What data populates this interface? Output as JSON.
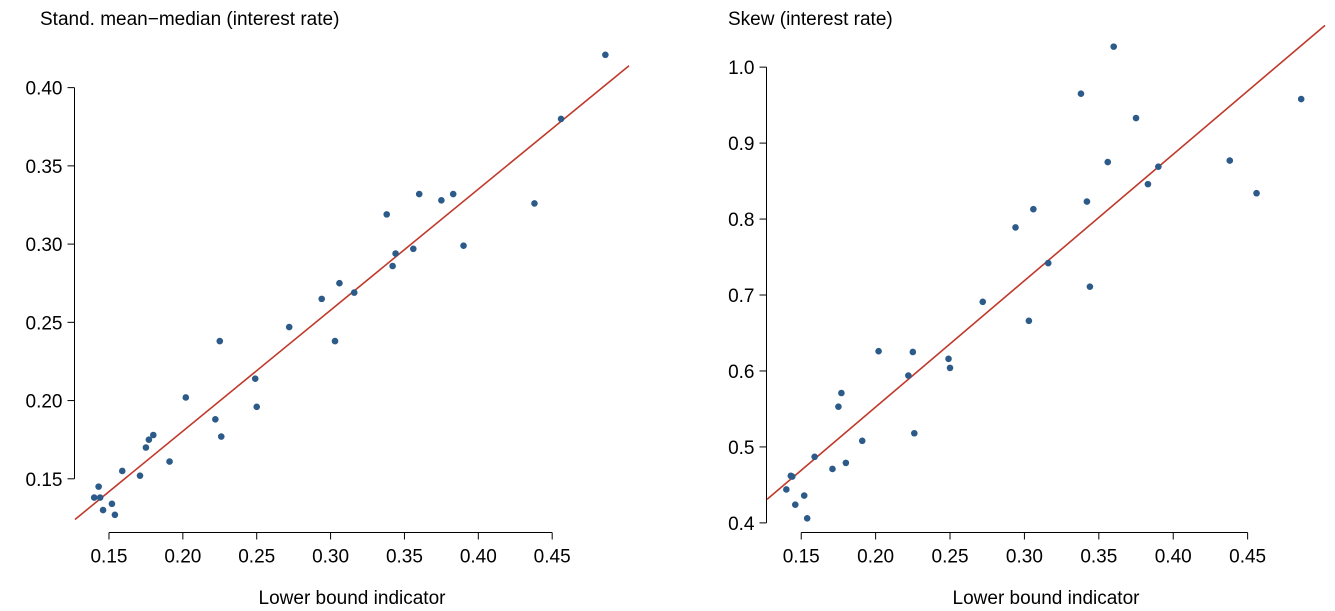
{
  "chart_data": [
    {
      "type": "scatter",
      "title": "Stand. mean−median (interest rate)",
      "xlabel": "Lower bound indicator",
      "ylabel": "",
      "xlim": [
        0.127,
        0.502
      ],
      "ylim": [
        0.116,
        0.433
      ],
      "xticks": [
        0.15,
        0.2,
        0.25,
        0.3,
        0.35,
        0.4,
        0.45
      ],
      "xtick_labels": [
        "0.15",
        "0.20",
        "0.25",
        "0.30",
        "0.35",
        "0.40",
        "0.45"
      ],
      "yticks": [
        0.15,
        0.2,
        0.25,
        0.3,
        0.35,
        0.4
      ],
      "ytick_labels": [
        "0.15",
        "0.20",
        "0.25",
        "0.30",
        "0.35",
        "0.40"
      ],
      "grid": false,
      "point_color": "#2c5b8a",
      "line_color": "#c0392b",
      "fit_line": [
        [
          0.127,
          0.124
        ],
        [
          0.502,
          0.414
        ]
      ],
      "x": [
        0.14,
        0.143,
        0.144,
        0.146,
        0.152,
        0.154,
        0.159,
        0.171,
        0.175,
        0.177,
        0.18,
        0.191,
        0.202,
        0.222,
        0.225,
        0.226,
        0.249,
        0.25,
        0.272,
        0.294,
        0.303,
        0.306,
        0.316,
        0.338,
        0.342,
        0.344,
        0.356,
        0.36,
        0.375,
        0.383,
        0.39,
        0.438,
        0.456,
        0.486
      ],
      "y": [
        0.138,
        0.145,
        0.138,
        0.13,
        0.134,
        0.127,
        0.155,
        0.152,
        0.17,
        0.175,
        0.178,
        0.161,
        0.202,
        0.188,
        0.238,
        0.177,
        0.214,
        0.196,
        0.247,
        0.265,
        0.238,
        0.275,
        0.269,
        0.319,
        0.286,
        0.294,
        0.297,
        0.332,
        0.328,
        0.332,
        0.299,
        0.326,
        0.38,
        0.421
      ]
    },
    {
      "type": "scatter",
      "title": "Skew (interest rate)",
      "xlabel": "Lower bound indicator",
      "ylabel": "",
      "xlim": [
        0.127,
        0.502
      ],
      "ylim": [
        0.388,
        1.041
      ],
      "xticks": [
        0.15,
        0.2,
        0.25,
        0.3,
        0.35,
        0.4,
        0.45
      ],
      "xtick_labels": [
        "0.15",
        "0.20",
        "0.25",
        "0.30",
        "0.35",
        "0.40",
        "0.45"
      ],
      "yticks": [
        0.4,
        0.5,
        0.6,
        0.7,
        0.8,
        0.9,
        1.0
      ],
      "ytick_labels": [
        "0.4",
        "0.5",
        "0.6",
        "0.7",
        "0.8",
        "0.9",
        "1.0"
      ],
      "grid": false,
      "point_color": "#2c5b8a",
      "line_color": "#c0392b",
      "fit_line": [
        [
          0.127,
          0.431
        ],
        [
          0.502,
          1.055
        ]
      ],
      "x": [
        0.14,
        0.143,
        0.144,
        0.146,
        0.152,
        0.154,
        0.159,
        0.171,
        0.175,
        0.177,
        0.18,
        0.191,
        0.202,
        0.222,
        0.225,
        0.226,
        0.249,
        0.25,
        0.272,
        0.294,
        0.303,
        0.306,
        0.316,
        0.338,
        0.342,
        0.344,
        0.356,
        0.36,
        0.375,
        0.383,
        0.39,
        0.438,
        0.456,
        0.486
      ],
      "y": [
        0.444,
        0.462,
        0.461,
        0.424,
        0.436,
        0.406,
        0.487,
        0.471,
        0.553,
        0.571,
        0.479,
        0.508,
        0.626,
        0.594,
        0.625,
        0.518,
        0.616,
        0.604,
        0.691,
        0.789,
        0.666,
        0.813,
        0.742,
        0.965,
        0.823,
        0.711,
        0.875,
        1.027,
        0.933,
        0.846,
        0.869,
        0.877,
        0.834,
        0.958
      ]
    }
  ]
}
